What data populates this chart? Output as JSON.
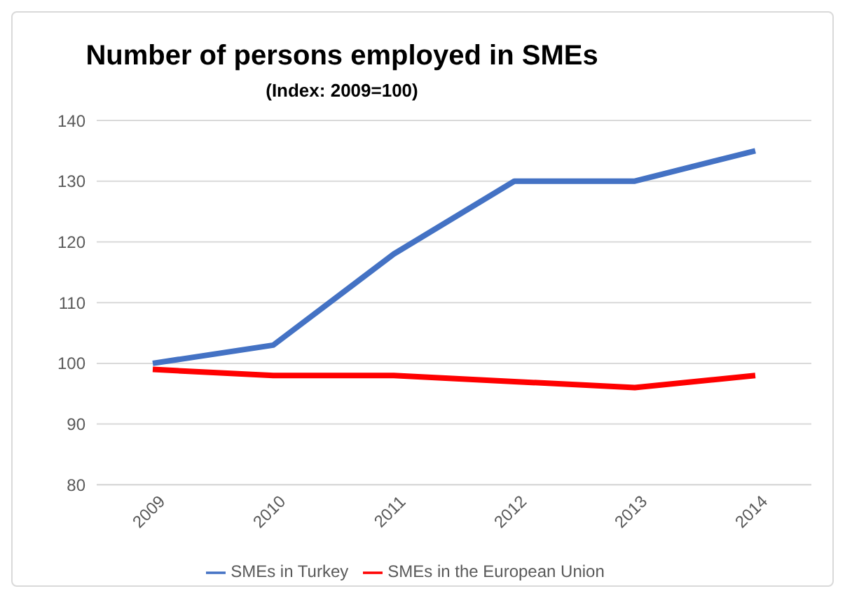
{
  "chart_data": {
    "type": "line",
    "title": "Number of persons employed in SMEs",
    "subtitle": "(Index: 2009=100)",
    "categories": [
      "2009",
      "2010",
      "2011",
      "2012",
      "2013",
      "2014"
    ],
    "series": [
      {
        "name": "SMEs in Turkey",
        "color": "#4472c4",
        "values": [
          100,
          103,
          118,
          130,
          130,
          135
        ]
      },
      {
        "name": "SMEs in the European Union",
        "color": "#ff0000",
        "values": [
          99,
          98,
          98,
          97,
          96,
          98
        ]
      }
    ],
    "ylim": [
      80,
      140
    ],
    "yticks": [
      80,
      90,
      100,
      110,
      120,
      130,
      140
    ],
    "grid": "y",
    "legend": "bottom",
    "marker": "none",
    "line_style": "solid"
  }
}
